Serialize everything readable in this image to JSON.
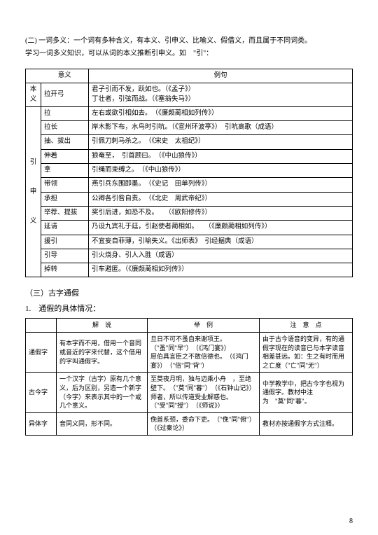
{
  "intro": {
    "line1": "(二) 一词多义：一个词有多种含义，有本义、引申义、比喻义、假借义，而且属于不同词类。",
    "line2": "学习一词多义知识，可以从词的本义推断引申义。如　\"引\"："
  },
  "table1": {
    "hdr_meaning": "意义",
    "hdr_example": "例句",
    "row_ben": {
      "label": "本义",
      "meaning": "拉开弓",
      "example": "君子引而不发，跃如也。（《孟子》）\n丁壮者，引弦而战。（《塞翁失马》）"
    },
    "side": "引\n\n申\n\n义",
    "rows": [
      {
        "m": "拉",
        "e": "左右或欲引相如去。　（《廉颇蔺相如列传》）"
      },
      {
        "m": "拉长",
        "e": "岸木影下布，水鸟时引吭。（《宣州环波亭》）　引吭高歌（成语）"
      },
      {
        "m": "抽、拔出",
        "e": "引佩刀刺马杀之。　（《宋史　太祖纪》）"
      },
      {
        "m": "伸着",
        "e": "狼奄至，　引首顾曰。　（《中山狼传》）"
      },
      {
        "m": "拿",
        "e": "引绳而束缚之。　（《中山狼传》）"
      },
      {
        "m": "带领",
        "e": "燕引兵东围即墨。　（《史记　田单列传》）"
      },
      {
        "m": "承担",
        "e": "公卿各引咎自责。　（《北史　周武帝纪》）"
      },
      {
        "m": "举荐、提拔",
        "e": "奖引后进，如恐不及。　　（《欧阳修传》）"
      },
      {
        "m": "延请",
        "e": "乃设九宾礼于廷，引赵使者蔺相如。　　（《廉颇蔺相如列传》）"
      },
      {
        "m": "援引",
        "e": "不宜妄自菲薄，引喻失义。《出师表》　引经据典（成语）"
      },
      {
        "m": "引导",
        "e": "引火烧身、引人入胜（成语）"
      },
      {
        "m": "掉转",
        "e": "引车避匿。（《廉颇蔺相如列传》）"
      }
    ]
  },
  "section3": "（三）古字通假",
  "section3_sub": "1.　通假的具体情况：",
  "table2": {
    "hdr_explain": "解　说",
    "hdr_example": "举　例",
    "hdr_note": "注　意　点",
    "rows": [
      {
        "label": "通假字",
        "explain": "有本字而不用，借用一个音同或音近的字来代替，这个借用的字叫通假字。",
        "example": "旦日不可不蚤自来谢项王。　（\"蚤\"同\"早\"）　（《鸿门宴》）\n愿伯具言臣之不敢倍德也。　（《鸿门宴》）　（\"倍\"同\"背\"）",
        "note": "由于古今语音的变异，有的通假字现在的读音已与本字读音相差甚远。如：生之有时而用之亡度（\"亡\"同\"无\"）"
      },
      {
        "label": "古今字",
        "explain": "一个汉字（古字）原有几个意义，后为区别，另造一个新字（今字）来表示其中的一个或几个意义。",
        "example": "至莫夜月明，独与迈乘小舟　，至绝壁下。　（\"莫\"同\"暮\"）　（《石钟山记》）\n师者，所以传道受业解惑也。　（\"受\"同\"授\"）　（《师说》）",
        "note": "中学教学中，把古今字也视为通假字。教材中注为　\"莫\"同\"暮\"。"
      },
      {
        "label": "异体字",
        "explain": "音同义同，形不同。",
        "example": "俛首系颈，委命下吏。　（\"俛\"同\"俯\"）　（《过秦论》）",
        "note": "教材亦按通假字方式注释。"
      }
    ]
  },
  "pagenum": "8"
}
